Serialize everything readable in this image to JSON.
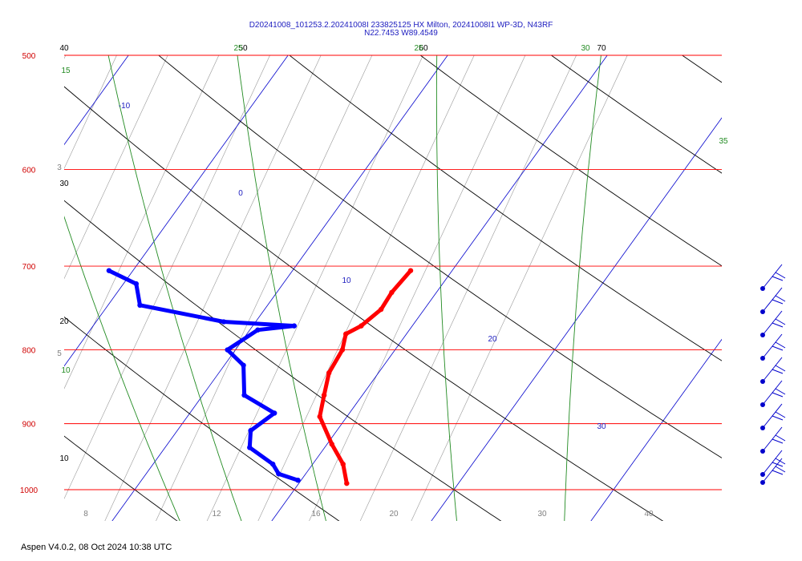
{
  "chart_data": {
    "type": "line",
    "diagram": "skew-T log-p",
    "title_line1": "D20241008_101253.2.20241008I 233825125 HX Milton, 20241008I1 WP-3D, N43RF",
    "title_line2": "N22.7453 W89.4549",
    "pressure_levels": [
      500,
      600,
      700,
      800,
      900,
      1000
    ],
    "bottom_temperature_ticks": [
      8,
      12,
      16,
      20,
      30,
      40
    ],
    "dry_adiabat_labels": [
      {
        "text": "40"
      },
      {
        "text": "30"
      },
      {
        "text": "20"
      },
      {
        "text": "10"
      },
      {
        "text": "50"
      },
      {
        "text": "60"
      },
      {
        "text": "70"
      }
    ],
    "moist_adiabat_labels": [
      {
        "text": "15"
      },
      {
        "text": "10"
      },
      {
        "text": "25"
      },
      {
        "text": "25"
      },
      {
        "text": "30"
      },
      {
        "text": "35"
      }
    ],
    "isotherm_labels": [
      {
        "text": "-10"
      },
      {
        "text": "0"
      },
      {
        "text": "10"
      },
      {
        "text": "20"
      },
      {
        "text": "30"
      }
    ],
    "mixing_ratio_labels": [
      {
        "text": "3"
      },
      {
        "text": "5"
      }
    ],
    "series": [
      {
        "color": "#ff0000",
        "points": [
          [
            705,
            17.4
          ],
          [
            730,
            17.2
          ],
          [
            750,
            17.3
          ],
          [
            770,
            16.8
          ],
          [
            780,
            16.2
          ],
          [
            800,
            16.7
          ],
          [
            830,
            16.9
          ],
          [
            860,
            17.6
          ],
          [
            890,
            18.3
          ],
          [
            930,
            20.3
          ],
          [
            960,
            21.9
          ],
          [
            990,
            23.0
          ]
        ]
      },
      {
        "color": "#0000ff",
        "points": [
          [
            705,
            -1.5
          ],
          [
            720,
            0.8
          ],
          [
            745,
            2.0
          ],
          [
            765,
            8.0
          ],
          [
            770,
            12.6
          ],
          [
            775,
            10.5
          ],
          [
            800,
            9.5
          ],
          [
            820,
            11.2
          ],
          [
            860,
            12.6
          ],
          [
            885,
            15.3
          ],
          [
            910,
            14.6
          ],
          [
            935,
            15.3
          ],
          [
            960,
            17.5
          ],
          [
            975,
            18.3
          ],
          [
            985,
            19.8
          ]
        ]
      }
    ],
    "wind_barb_count": 10
  },
  "footer": "Aspen V4.0.2, 08 Oct 2024  10:38 UTC",
  "colors": {
    "isobar": "#ff0000",
    "isotherm": "#0000cc",
    "dry_adiabat": "#000000",
    "moist_adiabat": "#228b22",
    "mixing_ratio": "#999999",
    "temperature": "#ff0000",
    "dewpoint": "#0000ff"
  }
}
